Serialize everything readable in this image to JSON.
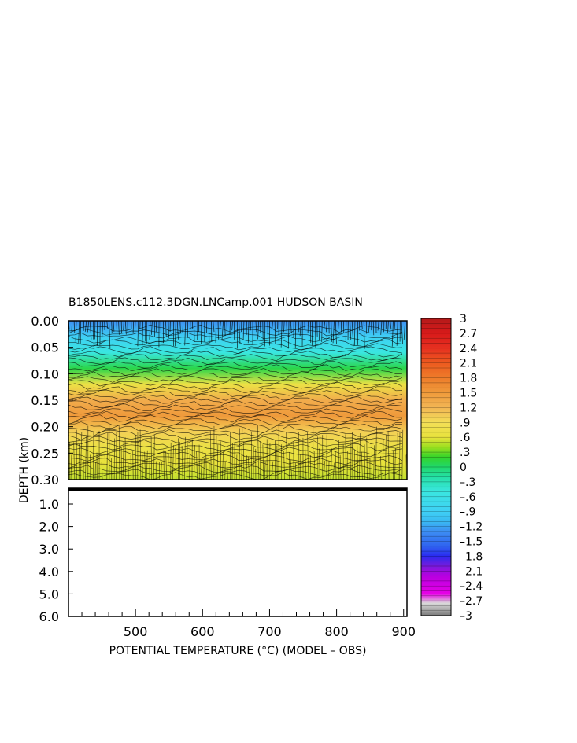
{
  "chart_data": {
    "type": "heatmap",
    "title": "B1850LENS.c112.3DGN.LNCamp.001 HUDSON BASIN",
    "xlabel": "POTENTIAL TEMPERATURE (°C) (MODEL – OBS)",
    "ylabel": "DEPTH (km)",
    "x_range": [
      400,
      905
    ],
    "x_ticks": [
      500,
      600,
      700,
      800,
      900
    ],
    "upper_panel": {
      "y_range": [
        0.0,
        0.3
      ],
      "y_ticks": [
        "0.00",
        "0.05",
        "0.10",
        "0.15",
        "0.20",
        "0.25",
        "0.30"
      ],
      "depth_profile": [
        {
          "depth": 0.0,
          "value": -1.3
        },
        {
          "depth": 0.03,
          "value": -0.9
        },
        {
          "depth": 0.06,
          "value": -0.5
        },
        {
          "depth": 0.09,
          "value": 0.1
        },
        {
          "depth": 0.12,
          "value": 0.7
        },
        {
          "depth": 0.15,
          "value": 1.3
        },
        {
          "depth": 0.18,
          "value": 1.5
        },
        {
          "depth": 0.21,
          "value": 1.0
        },
        {
          "depth": 0.24,
          "value": 0.7
        },
        {
          "depth": 0.27,
          "value": 0.6
        },
        {
          "depth": 0.3,
          "value": 0.5
        }
      ]
    },
    "lower_panel": {
      "y_range": [
        0.3,
        6.0
      ],
      "y_ticks": [
        "1.0",
        "2.0",
        "3.0",
        "4.0",
        "5.0",
        "6.0"
      ],
      "note_value": 0
    },
    "colorbar": {
      "min": -3,
      "max": 3,
      "tick_labels": [
        "3",
        "2.7",
        "2.4",
        "2.1",
        "1.8",
        "1.5",
        "1.2",
        ".9",
        ".6",
        ".3",
        "0",
        "–.3",
        "–.6",
        "–.9",
        "–1.2",
        "–1.5",
        "–1.8",
        "–2.1",
        "–2.4",
        "–2.7",
        "–3"
      ],
      "stops": [
        {
          "value": -3.0,
          "color": "#7a7a7a"
        },
        {
          "value": -2.75,
          "color": "#d9d9d9"
        },
        {
          "value": -2.55,
          "color": "#e600e6"
        },
        {
          "value": -2.2,
          "color": "#b800e0"
        },
        {
          "value": -2.0,
          "color": "#7a1bdc"
        },
        {
          "value": -1.8,
          "color": "#2a2af0"
        },
        {
          "value": -1.6,
          "color": "#2f63f0"
        },
        {
          "value": -1.3,
          "color": "#3d8ef2"
        },
        {
          "value": -1.1,
          "color": "#39b9f2"
        },
        {
          "value": -0.9,
          "color": "#3fd0f5"
        },
        {
          "value": -0.5,
          "color": "#3ae6e0"
        },
        {
          "value": -0.2,
          "color": "#25e0a6"
        },
        {
          "value": 0.0,
          "color": "#20d86a"
        },
        {
          "value": 0.2,
          "color": "#35d42a"
        },
        {
          "value": 0.4,
          "color": "#9be01f"
        },
        {
          "value": 0.6,
          "color": "#e8e23c"
        },
        {
          "value": 0.9,
          "color": "#f3de57"
        },
        {
          "value": 1.2,
          "color": "#f2b554"
        },
        {
          "value": 1.5,
          "color": "#ef9a3b"
        },
        {
          "value": 1.8,
          "color": "#ee7c2a"
        },
        {
          "value": 2.1,
          "color": "#ec5a1f"
        },
        {
          "value": 2.4,
          "color": "#e63020"
        },
        {
          "value": 2.7,
          "color": "#d81a1a"
        },
        {
          "value": 3.0,
          "color": "#b41a1a"
        }
      ]
    }
  }
}
